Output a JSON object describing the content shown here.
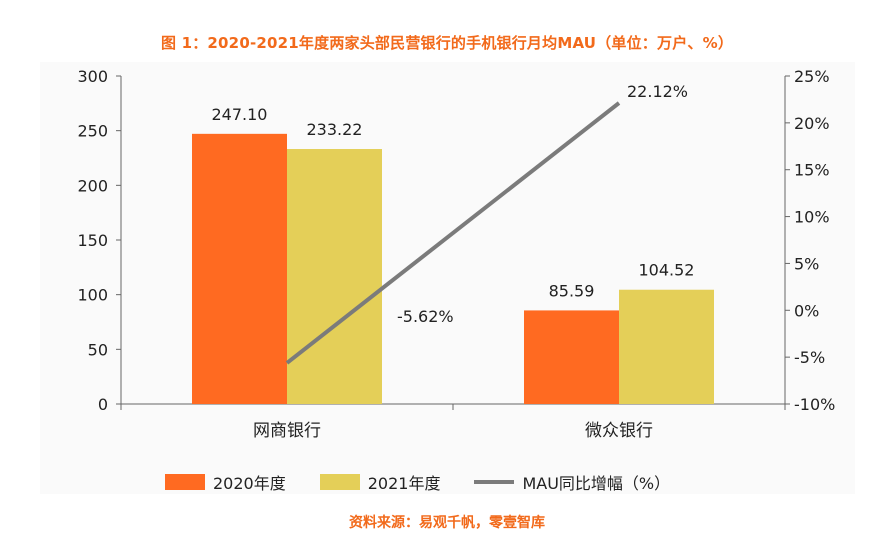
{
  "title": "图 1：2020-2021年度两家头部民营银行的手机银行月均MAU（单位：万户、%）",
  "source": "资料来源：易观千帆，零壹智库",
  "colors": {
    "s2020": "#ff6a21",
    "s2021": "#e4cf58",
    "line": "#7b7b7b",
    "accent": "#f26a1b"
  },
  "chart_data": {
    "type": "bar",
    "categories": [
      "网商银行",
      "微众银行"
    ],
    "series": [
      {
        "name": "2020年度",
        "type": "bar",
        "axis": "left",
        "values": [
          247.1,
          85.59
        ],
        "labels": [
          "247.10",
          "85.59"
        ]
      },
      {
        "name": "2021年度",
        "type": "bar",
        "axis": "left",
        "values": [
          233.22,
          104.52
        ],
        "labels": [
          "233.22",
          "104.52"
        ]
      },
      {
        "name": "MAU同比增幅（%）",
        "type": "line",
        "axis": "right",
        "values": [
          -5.62,
          22.12
        ],
        "labels": [
          "-5.62%",
          "22.12%"
        ]
      }
    ],
    "ylim_left": [
      0,
      300
    ],
    "left_ticks": [
      "0",
      "50",
      "100",
      "150",
      "200",
      "250",
      "300"
    ],
    "ylim_right": [
      -10,
      25
    ],
    "right_ticks": [
      "-10%",
      "-5%",
      "0%",
      "5%",
      "10%",
      "15%",
      "20%",
      "25%"
    ],
    "legend_position": "bottom",
    "grid": false
  }
}
